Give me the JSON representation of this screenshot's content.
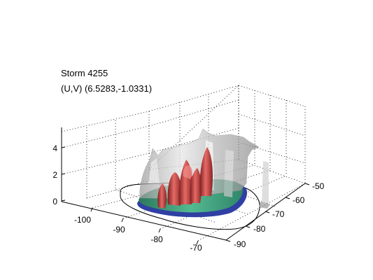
{
  "chart_data": {
    "type": "surface3d",
    "title": [
      "Storm 4255",
      "(U,V) (6.5283,-1.0331)"
    ],
    "storm_id": 4255,
    "motion_uv": [
      6.5283,
      -1.0331
    ],
    "x_axis": {
      "ticks": [
        -100,
        -90,
        -80,
        -70
      ]
    },
    "y_axis": {
      "ticks": [
        -90,
        -80,
        -70,
        -60,
        -50
      ]
    },
    "z_axis": {
      "ticks": [
        0,
        2,
        4
      ]
    },
    "grid": true,
    "layers": [
      {
        "name": "gray",
        "color": "#b8b8b8"
      },
      {
        "name": "red",
        "color": "#c8413f"
      },
      {
        "name": "green",
        "color": "#3ea37a"
      },
      {
        "name": "blue",
        "color": "#2f3fa3"
      }
    ]
  }
}
